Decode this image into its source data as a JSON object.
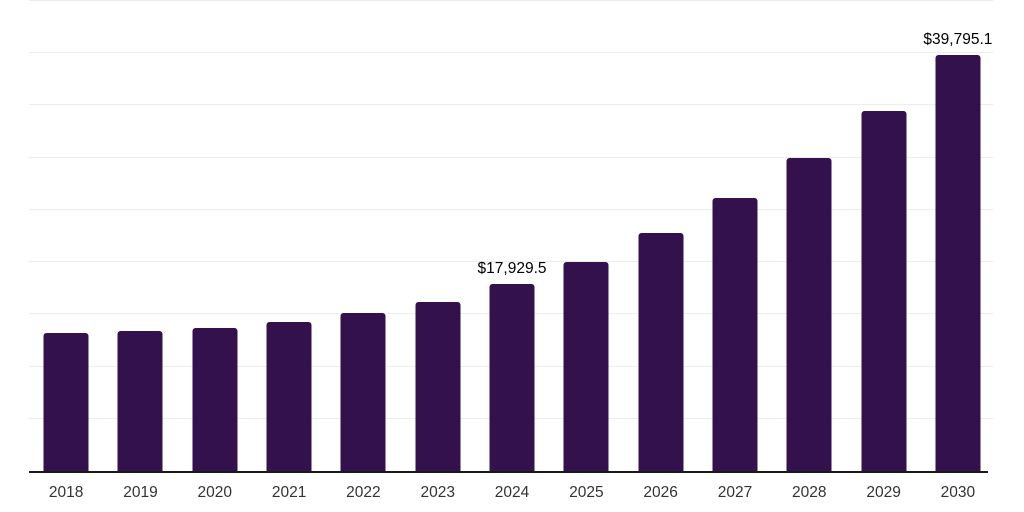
{
  "chart_data": {
    "type": "bar",
    "title": "",
    "xlabel": "",
    "ylabel": "",
    "categories": [
      "2018",
      "2019",
      "2020",
      "2021",
      "2022",
      "2023",
      "2024",
      "2025",
      "2026",
      "2027",
      "2028",
      "2029",
      "2030"
    ],
    "values": [
      13200,
      13450,
      13700,
      14300,
      15150,
      16200,
      17929.5,
      20050,
      22750,
      26100,
      29950,
      34450,
      39795.1
    ],
    "data_labels": [
      "",
      "",
      "",
      "",
      "",
      "",
      "$17,929.5",
      "",
      "",
      "",
      "",
      "",
      "$39,795.1"
    ],
    "ylim": [
      0,
      45000
    ],
    "gridline_step": 5000,
    "grid": "horizontal",
    "legend_position": "none",
    "colors": {
      "bar": "#32114D",
      "gridline": "#ededed",
      "axis": "#1a1a1a",
      "tick_label": "#333333",
      "data_label": "#000000",
      "background": "#ffffff"
    }
  }
}
